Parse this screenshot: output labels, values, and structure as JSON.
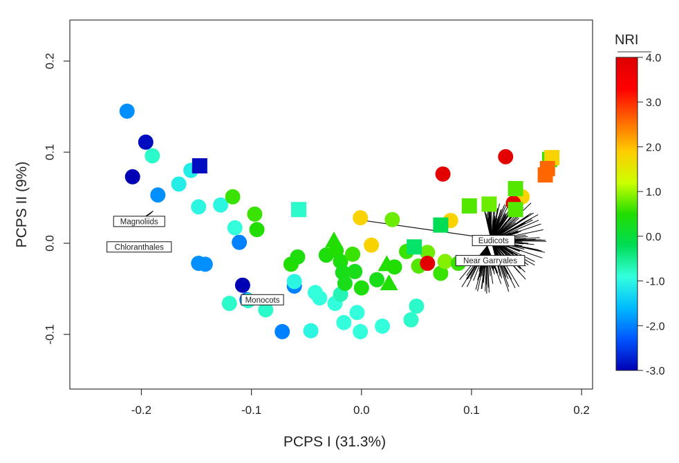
{
  "chart_data": {
    "type": "scatter",
    "title": "",
    "xlabel": "PCPS I (31.3%)",
    "ylabel": "PCPS II (9%)",
    "xlim": [
      -0.265,
      0.21
    ],
    "ylim": [
      -0.16,
      0.245
    ],
    "xticks": [
      -0.2,
      -0.1,
      0.0,
      0.1,
      0.2
    ],
    "xtick_labels": [
      "-0.2",
      "-0.1",
      "0.0",
      "0.1",
      "0.2"
    ],
    "yticks": [
      -0.1,
      0.0,
      0.1,
      0.2
    ],
    "ytick_labels": [
      "-0.1",
      "0.0",
      "0.1",
      "0.2"
    ],
    "grid": false,
    "colorbar": {
      "title": "NRI",
      "min": -3.0,
      "max": 4.0,
      "ticks": [
        4.0,
        3.0,
        2.0,
        1.0,
        0.0,
        -1.0,
        -2.0,
        -3.0
      ],
      "tick_labels": [
        "4.0",
        "3.0",
        "2.0",
        "1.0",
        "0.0",
        "-1.0",
        "-2.0",
        "-3.0"
      ],
      "colors": [
        "#0000b4",
        "#0055ff",
        "#00bbff",
        "#33ffdd",
        "#00dd55",
        "#22dd00",
        "#ccff00",
        "#ffcc00",
        "#ff6600",
        "#ff0000",
        "#dd0000"
      ]
    },
    "marker_shapes": [
      "circle",
      "square",
      "triangle"
    ],
    "points": [
      {
        "x": -0.213,
        "y": 0.145,
        "nri": -1.9,
        "shape": "circle"
      },
      {
        "x": -0.196,
        "y": 0.111,
        "nri": -2.9,
        "shape": "circle"
      },
      {
        "x": -0.19,
        "y": 0.096,
        "nri": -0.8,
        "shape": "circle"
      },
      {
        "x": -0.208,
        "y": 0.073,
        "nri": -3.0,
        "shape": "circle"
      },
      {
        "x": -0.185,
        "y": 0.053,
        "nri": -1.9,
        "shape": "circle"
      },
      {
        "x": -0.166,
        "y": 0.065,
        "nri": -1.1,
        "shape": "circle"
      },
      {
        "x": -0.155,
        "y": 0.08,
        "nri": -1.1,
        "shape": "circle"
      },
      {
        "x": -0.148,
        "y": 0.04,
        "nri": -1.0,
        "shape": "circle"
      },
      {
        "x": -0.128,
        "y": 0.042,
        "nri": -1.0,
        "shape": "circle"
      },
      {
        "x": -0.115,
        "y": 0.017,
        "nri": -0.9,
        "shape": "circle"
      },
      {
        "x": -0.111,
        "y": 0.001,
        "nri": -2.0,
        "shape": "circle"
      },
      {
        "x": -0.148,
        "y": -0.022,
        "nri": -1.9,
        "shape": "circle"
      },
      {
        "x": -0.142,
        "y": -0.023,
        "nri": -1.9,
        "shape": "circle"
      },
      {
        "x": -0.108,
        "y": -0.046,
        "nri": -3.0,
        "shape": "circle"
      },
      {
        "x": -0.12,
        "y": -0.066,
        "nri": -0.8,
        "shape": "circle"
      },
      {
        "x": -0.104,
        "y": -0.062,
        "nri": -2.2,
        "shape": "circle"
      },
      {
        "x": -0.103,
        "y": -0.063,
        "nri": -0.8,
        "shape": "circle"
      },
      {
        "x": -0.087,
        "y": -0.073,
        "nri": -0.8,
        "shape": "circle"
      },
      {
        "x": -0.072,
        "y": -0.097,
        "nri": -2.0,
        "shape": "circle"
      },
      {
        "x": -0.061,
        "y": -0.047,
        "nri": -2.0,
        "shape": "circle"
      },
      {
        "x": -0.061,
        "y": -0.042,
        "nri": -1.0,
        "shape": "circle"
      },
      {
        "x": -0.046,
        "y": -0.096,
        "nri": -1.0,
        "shape": "circle"
      },
      {
        "x": -0.042,
        "y": -0.054,
        "nri": -0.9,
        "shape": "circle"
      },
      {
        "x": -0.038,
        "y": -0.06,
        "nri": -0.9,
        "shape": "circle"
      },
      {
        "x": -0.024,
        "y": -0.066,
        "nri": -0.9,
        "shape": "circle"
      },
      {
        "x": -0.019,
        "y": -0.056,
        "nri": -0.7,
        "shape": "circle"
      },
      {
        "x": -0.016,
        "y": -0.087,
        "nri": -0.9,
        "shape": "circle"
      },
      {
        "x": -0.004,
        "y": -0.076,
        "nri": -0.9,
        "shape": "circle"
      },
      {
        "x": -0.001,
        "y": -0.097,
        "nri": -0.9,
        "shape": "circle"
      },
      {
        "x": 0.019,
        "y": -0.091,
        "nri": -0.9,
        "shape": "circle"
      },
      {
        "x": 0.045,
        "y": -0.084,
        "nri": -0.8,
        "shape": "circle"
      },
      {
        "x": 0.05,
        "y": -0.069,
        "nri": -0.8,
        "shape": "circle"
      },
      {
        "x": -0.117,
        "y": 0.051,
        "nri": 0.6,
        "shape": "circle"
      },
      {
        "x": -0.097,
        "y": 0.032,
        "nri": 0.6,
        "shape": "circle"
      },
      {
        "x": -0.095,
        "y": 0.015,
        "nri": 0.5,
        "shape": "circle"
      },
      {
        "x": -0.064,
        "y": -0.023,
        "nri": 0.5,
        "shape": "circle"
      },
      {
        "x": -0.058,
        "y": -0.015,
        "nri": 0.4,
        "shape": "circle"
      },
      {
        "x": -0.032,
        "y": -0.013,
        "nri": 0.4,
        "shape": "circle"
      },
      {
        "x": -0.023,
        "y": -0.008,
        "nri": 0.5,
        "shape": "circle"
      },
      {
        "x": -0.019,
        "y": -0.02,
        "nri": 0.4,
        "shape": "circle"
      },
      {
        "x": -0.017,
        "y": -0.032,
        "nri": 0.3,
        "shape": "circle"
      },
      {
        "x": -0.015,
        "y": -0.044,
        "nri": 0.3,
        "shape": "circle"
      },
      {
        "x": -0.006,
        "y": -0.031,
        "nri": 0.3,
        "shape": "circle"
      },
      {
        "x": -0.008,
        "y": -0.012,
        "nri": 0.6,
        "shape": "circle"
      },
      {
        "x": 0.0,
        "y": -0.049,
        "nri": 0.4,
        "shape": "circle"
      },
      {
        "x": 0.014,
        "y": -0.04,
        "nri": 0.3,
        "shape": "circle"
      },
      {
        "x": 0.03,
        "y": -0.026,
        "nri": 0.5,
        "shape": "circle"
      },
      {
        "x": 0.028,
        "y": 0.026,
        "nri": 0.8,
        "shape": "circle"
      },
      {
        "x": 0.041,
        "y": -0.009,
        "nri": 0.6,
        "shape": "circle"
      },
      {
        "x": 0.052,
        "y": -0.025,
        "nri": 0.7,
        "shape": "circle"
      },
      {
        "x": 0.06,
        "y": -0.01,
        "nri": 0.8,
        "shape": "circle"
      },
      {
        "x": 0.072,
        "y": -0.033,
        "nri": 0.6,
        "shape": "circle"
      },
      {
        "x": 0.076,
        "y": -0.02,
        "nri": 0.9,
        "shape": "circle"
      },
      {
        "x": 0.088,
        "y": -0.022,
        "nri": 0.6,
        "shape": "circle"
      },
      {
        "x": -0.001,
        "y": 0.028,
        "nri": 1.8,
        "shape": "circle"
      },
      {
        "x": 0.009,
        "y": -0.002,
        "nri": 1.8,
        "shape": "circle"
      },
      {
        "x": 0.081,
        "y": 0.025,
        "nri": 1.8,
        "shape": "circle"
      },
      {
        "x": 0.146,
        "y": 0.051,
        "nri": 1.8,
        "shape": "circle"
      },
      {
        "x": 0.074,
        "y": 0.076,
        "nri": 3.9,
        "shape": "circle"
      },
      {
        "x": 0.131,
        "y": 0.095,
        "nri": 3.9,
        "shape": "circle"
      },
      {
        "x": 0.138,
        "y": 0.044,
        "nri": 3.9,
        "shape": "circle"
      },
      {
        "x": 0.06,
        "y": -0.022,
        "nri": 3.9,
        "shape": "circle"
      },
      {
        "x": -0.147,
        "y": 0.085,
        "nri": -2.9,
        "shape": "square"
      },
      {
        "x": -0.057,
        "y": 0.037,
        "nri": -0.8,
        "shape": "square"
      },
      {
        "x": 0.048,
        "y": -0.004,
        "nri": -0.3,
        "shape": "square"
      },
      {
        "x": 0.072,
        "y": 0.02,
        "nri": -0.2,
        "shape": "square"
      },
      {
        "x": 0.098,
        "y": 0.041,
        "nri": 0.7,
        "shape": "square"
      },
      {
        "x": 0.116,
        "y": 0.043,
        "nri": 0.8,
        "shape": "square"
      },
      {
        "x": 0.14,
        "y": 0.06,
        "nri": 0.7,
        "shape": "square"
      },
      {
        "x": 0.14,
        "y": 0.037,
        "nri": 0.7,
        "shape": "square"
      },
      {
        "x": 0.171,
        "y": 0.092,
        "nri": 0.6,
        "shape": "square"
      },
      {
        "x": 0.173,
        "y": 0.094,
        "nri": 1.8,
        "shape": "square"
      },
      {
        "x": 0.169,
        "y": 0.082,
        "nri": 2.6,
        "shape": "square"
      },
      {
        "x": 0.167,
        "y": 0.075,
        "nri": 2.6,
        "shape": "square"
      },
      {
        "x": -0.025,
        "y": 0.003,
        "nri": 0.5,
        "shape": "triangle"
      },
      {
        "x": 0.023,
        "y": -0.023,
        "nri": 0.5,
        "shape": "triangle"
      },
      {
        "x": 0.025,
        "y": -0.044,
        "nri": 0.5,
        "shape": "triangle"
      }
    ],
    "annotations": [
      {
        "label": "Magnoliids",
        "x": -0.202,
        "y": 0.024
      },
      {
        "label": "Chloranthales",
        "x": -0.202,
        "y": -0.004
      },
      {
        "label": "Monocots",
        "x": -0.09,
        "y": -0.062
      },
      {
        "label": "Eudicots",
        "x": 0.12,
        "y": 0.003
      },
      {
        "label": "Near Garryales",
        "x": 0.117,
        "y": -0.019
      }
    ],
    "long_vector": {
      "from": [
        0.002,
        0.025
      ],
      "to": [
        0.118,
        0.005
      ]
    }
  }
}
